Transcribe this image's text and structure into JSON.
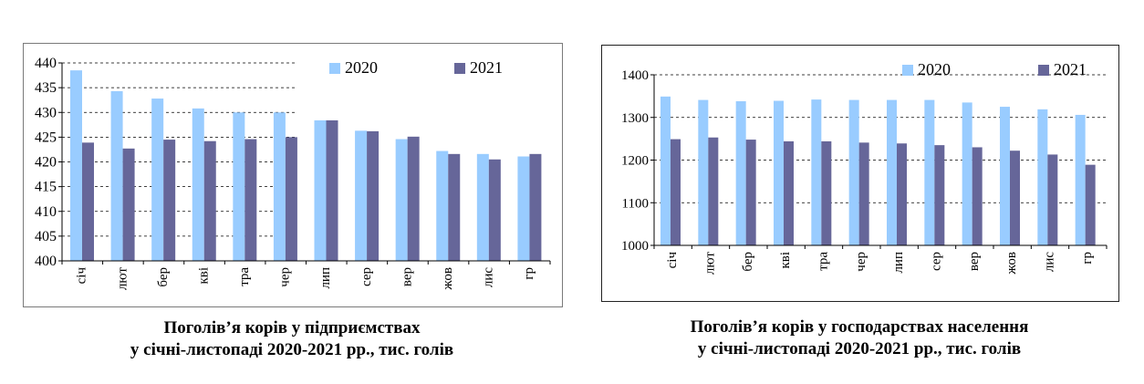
{
  "charts": [
    {
      "caption_line1": "Поголів’я корів у підприємствах",
      "caption_line2": "у січні-листопаді 2020-2021 рр., тис. голів"
    },
    {
      "caption_line1": "Поголів’я корів у господарствах населення",
      "caption_line2": "у січні-листопаді 2020-2021 рр., тис. голів"
    }
  ],
  "chart_data": [
    {
      "type": "bar",
      "title": "Поголів’я корів у підприємствах у січні-листопаді 2020-2021 рр., тис. голів",
      "categories": [
        "січ",
        "лют",
        "бер",
        "кві",
        "тра",
        "чер",
        "лип",
        "сер",
        "вер",
        "жов",
        "лис",
        "гр"
      ],
      "series": [
        {
          "name": "2020",
          "color": "#99ccff",
          "values": [
            438.5,
            434.3,
            432.8,
            430.8,
            430.0,
            430.0,
            428.4,
            426.3,
            424.6,
            422.2,
            421.6,
            421.1
          ]
        },
        {
          "name": "2021",
          "color": "#666699",
          "values": [
            423.9,
            422.7,
            424.5,
            424.2,
            424.6,
            425.0,
            428.4,
            426.2,
            425.1,
            421.6,
            420.5,
            421.6
          ]
        }
      ],
      "ylim": [
        400,
        440
      ],
      "yticks": [
        400,
        405,
        410,
        415,
        420,
        425,
        430,
        435,
        440
      ],
      "legend": "top-right",
      "grid": "dashed horizontal"
    },
    {
      "type": "bar",
      "title": "Поголів’я корів у господарствах населення у січні-листопаді 2020-2021 рр., тис. голів",
      "categories": [
        "січ",
        "лют",
        "бер",
        "кві",
        "тра",
        "чер",
        "лип",
        "сер",
        "вер",
        "жов",
        "лис",
        "гр"
      ],
      "series": [
        {
          "name": "2020",
          "color": "#99ccff",
          "values": [
            1349,
            1341,
            1338,
            1339,
            1342,
            1341,
            1341,
            1341,
            1335,
            1325,
            1319,
            1306
          ]
        },
        {
          "name": "2021",
          "color": "#666699",
          "values": [
            1249,
            1253,
            1248,
            1244,
            1244,
            1241,
            1239,
            1235,
            1230,
            1222,
            1213,
            1189
          ]
        }
      ],
      "ylim": [
        1000,
        1400
      ],
      "yticks": [
        1000,
        1100,
        1200,
        1300,
        1400
      ],
      "legend": "top-right",
      "grid": "dashed horizontal"
    }
  ]
}
